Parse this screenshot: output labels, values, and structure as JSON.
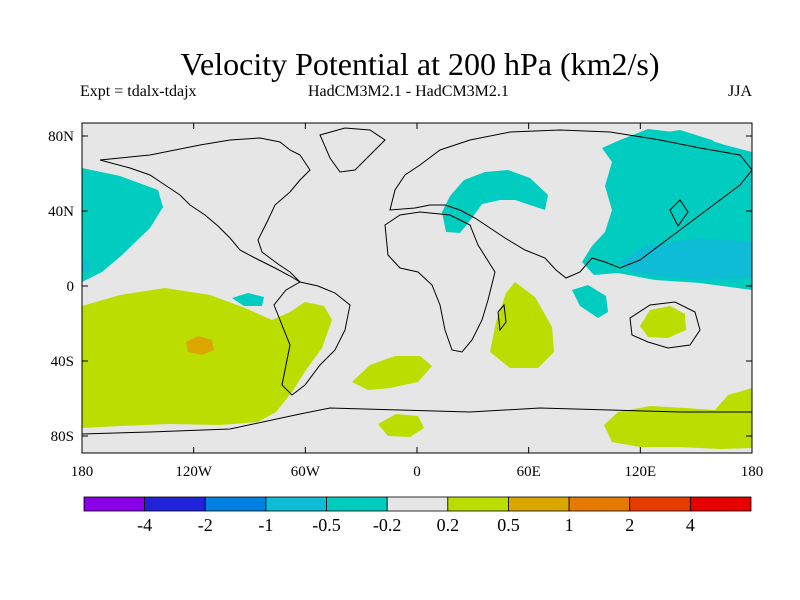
{
  "title": "Velocity Potential at 200 hPa (km2/s)",
  "experiment": "Expt = tdalx-tdajx",
  "model_label": "HadCM3M2.1 - HadCM3M2.1",
  "season": "JJA",
  "colors": {
    "neutral": "#e6e6e6",
    "neg_0_5": "#00cdc0",
    "neg_1": "#0fbcd6",
    "pos_0_2": "#bbdd00",
    "pos_0_5": "#dba600",
    "coast": "#000000"
  },
  "map": {
    "lat_ticks": [
      "80N",
      "40N",
      "0",
      "40S",
      "80S"
    ],
    "lon_ticks": [
      "180",
      "120W",
      "60W",
      "0",
      "60E",
      "120E",
      "180"
    ]
  },
  "colorbar": {
    "colors": [
      "#8a00e6",
      "#2222d8",
      "#0080e0",
      "#0fbcd6",
      "#00cdc0",
      "#e6e6e6",
      "#bbdd00",
      "#dba600",
      "#e67a00",
      "#e63c00",
      "#e60000"
    ],
    "labels": [
      "-4",
      "-2",
      "-1",
      "-0.5",
      "-0.2",
      "0.2",
      "0.5",
      "1",
      "2",
      "4"
    ]
  }
}
